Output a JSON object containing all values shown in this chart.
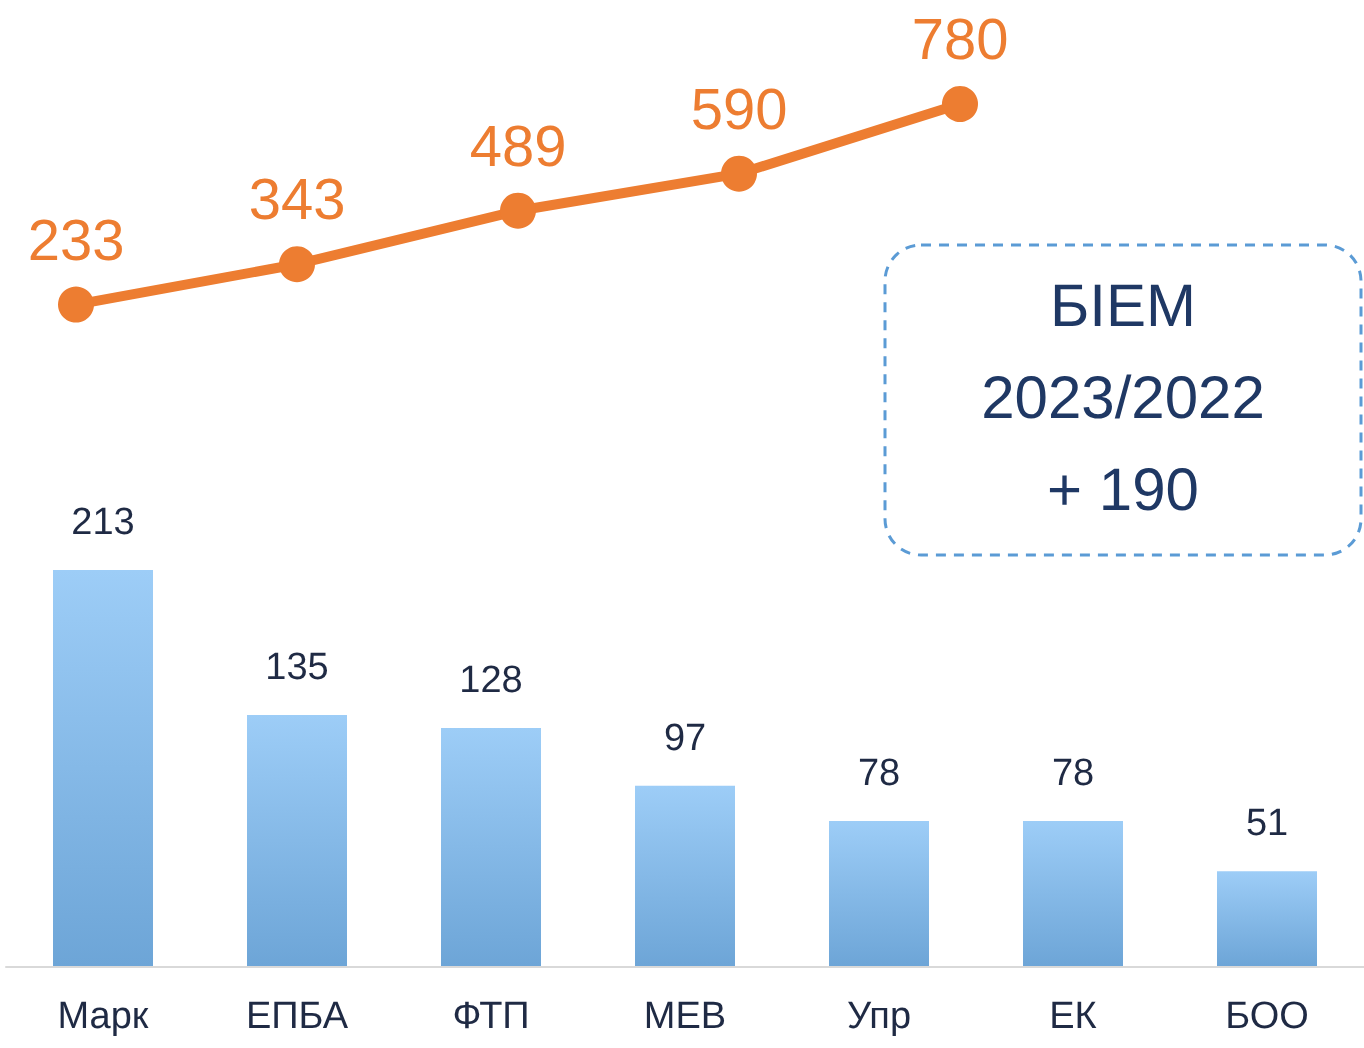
{
  "chart_data": [
    {
      "type": "line",
      "categories": [
        null,
        null,
        null,
        null,
        null
      ],
      "values": [
        233,
        343,
        489,
        590,
        780
      ],
      "color": "#ed7d31",
      "data_labels": true,
      "marker": "circle",
      "annotations": [
        "БІЕМ\n2023/2022\n+ 190"
      ]
    },
    {
      "type": "bar",
      "categories": [
        "Марк",
        "ЕПБА",
        "ФТП",
        "МЕВ",
        "Упр",
        "ЕК",
        "БОО"
      ],
      "values": [
        213,
        135,
        128,
        97,
        78,
        78,
        51
      ],
      "color": "#7cbcf4",
      "data_labels": true
    }
  ]
}
